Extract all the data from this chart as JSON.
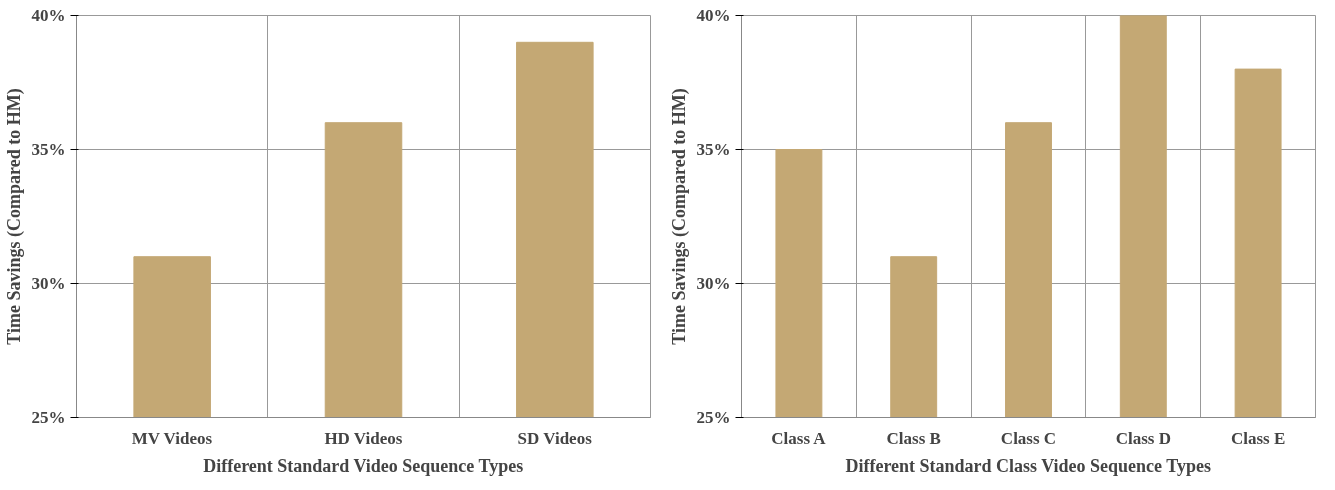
{
  "chart_data": [
    {
      "type": "bar",
      "categories": [
        "MV Videos",
        "HD Videos",
        "SD Videos"
      ],
      "values": [
        31,
        36,
        39
      ],
      "color": "#c4a874",
      "xlabel": "Different Standard Video Sequence Types",
      "ylabel": "Time Savings (Compared to HM)",
      "ylim": [
        25,
        40
      ],
      "yticks": [
        {
          "value": 25,
          "label": "25%"
        },
        {
          "value": 30,
          "label": "30%"
        },
        {
          "value": 35,
          "label": "35%"
        },
        {
          "value": 40,
          "label": "40%"
        }
      ],
      "grid": true
    },
    {
      "type": "bar",
      "categories": [
        "Class A",
        "Class B",
        "Class C",
        "Class D",
        "Class E"
      ],
      "values": [
        35,
        31,
        36,
        40,
        38
      ],
      "color": "#c4a874",
      "xlabel": "Different Standard Class Video Sequence Types",
      "ylabel": "Time Savings (Compared to HM)",
      "ylim": [
        25,
        40
      ],
      "yticks": [
        {
          "value": 25,
          "label": "25%"
        },
        {
          "value": 30,
          "label": "30%"
        },
        {
          "value": 35,
          "label": "35%"
        },
        {
          "value": 40,
          "label": "40%"
        }
      ],
      "grid": true
    }
  ]
}
